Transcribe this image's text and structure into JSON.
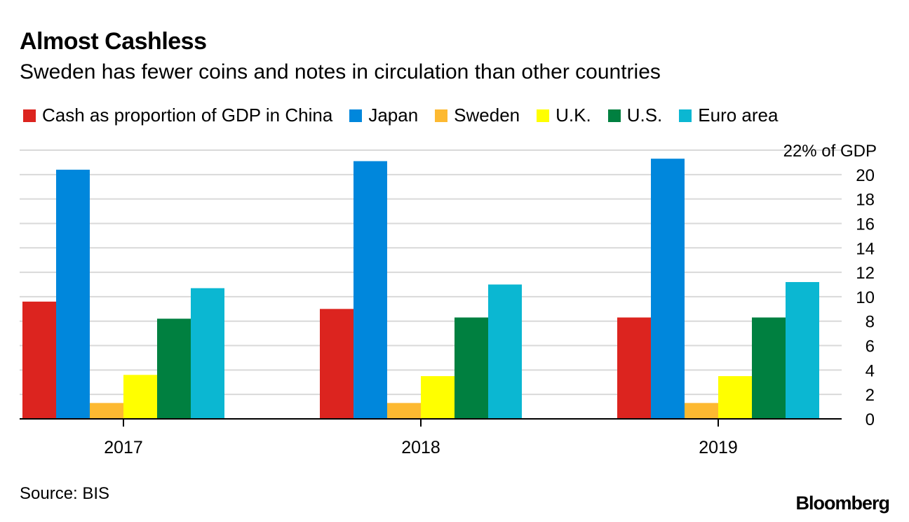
{
  "header": {
    "title": "Almost Cashless",
    "subtitle": "Sweden has fewer coins and notes in circulation than other countries"
  },
  "footer": {
    "source": "Source: BIS",
    "brand": "Bloomberg"
  },
  "chart_data": {
    "type": "bar",
    "categories": [
      "2017",
      "2018",
      "2019"
    ],
    "series": [
      {
        "name": "Cash as proportion of GDP in China",
        "color": "#dc241f",
        "values": [
          9.6,
          9.0,
          8.3
        ]
      },
      {
        "name": "Japan",
        "color": "#0087dc",
        "values": [
          20.4,
          21.1,
          21.3
        ]
      },
      {
        "name": "Sweden",
        "color": "#fdb931",
        "values": [
          1.3,
          1.3,
          1.3
        ]
      },
      {
        "name": "U.K.",
        "color": "#ffff00",
        "values": [
          3.6,
          3.5,
          3.5
        ]
      },
      {
        "name": "U.S.",
        "color": "#008040",
        "values": [
          8.2,
          8.3,
          8.3
        ]
      },
      {
        "name": "Euro area",
        "color": "#0bb7d2",
        "values": [
          10.7,
          11.0,
          11.2
        ]
      }
    ],
    "ylim": [
      0,
      22
    ],
    "yticks": [
      0,
      2,
      4,
      6,
      8,
      10,
      12,
      14,
      16,
      18,
      20
    ],
    "top_label": "22% of GDP",
    "yaxis_side": "right",
    "grid": true
  }
}
